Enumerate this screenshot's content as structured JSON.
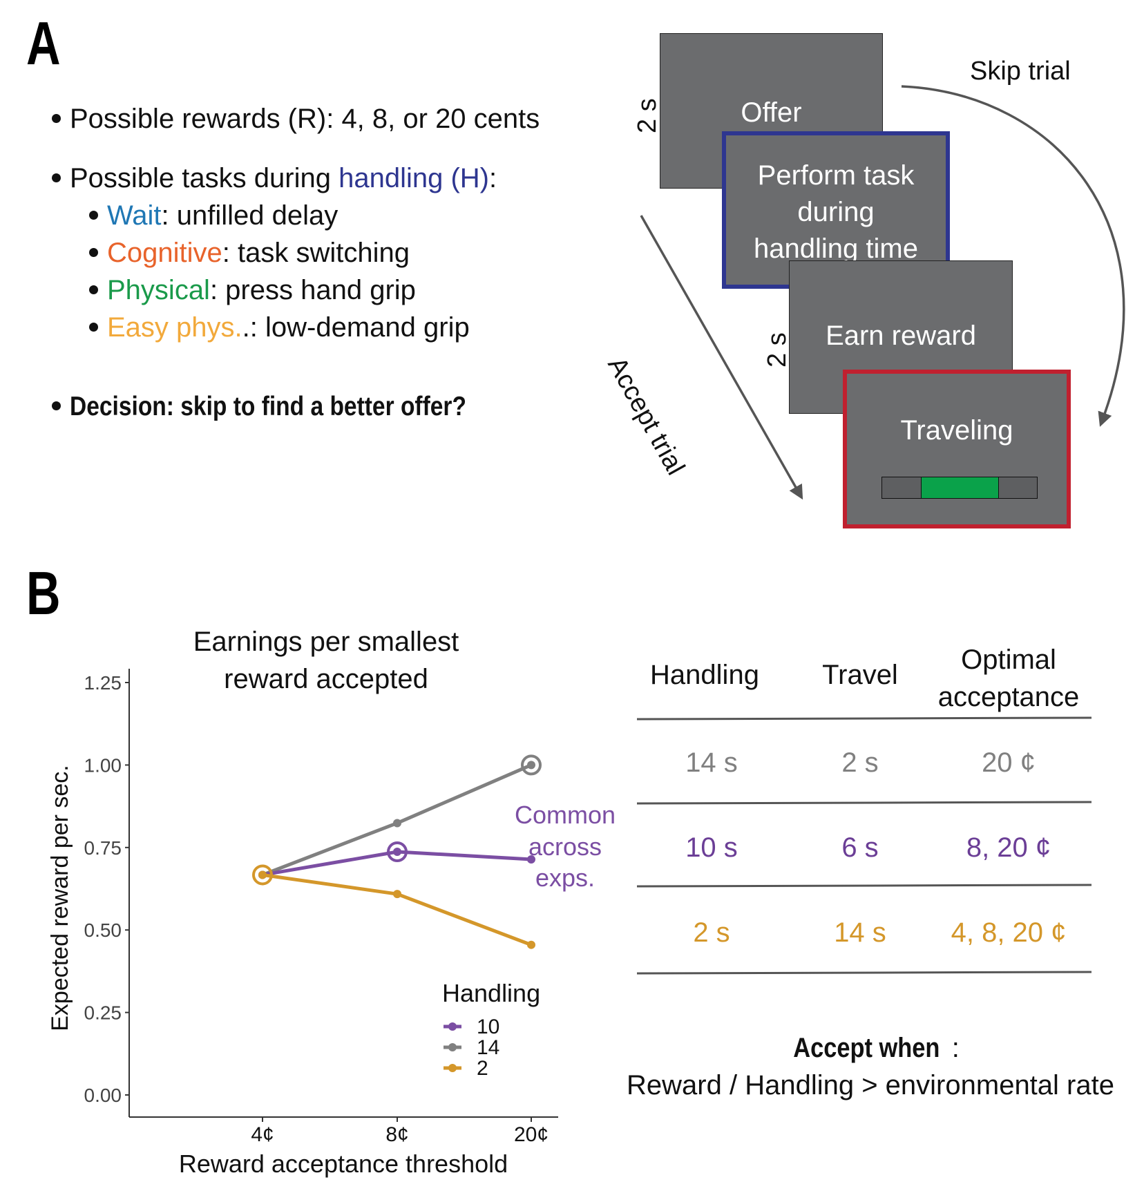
{
  "panels": {
    "a": "A",
    "b": "B"
  },
  "bullets": {
    "rewards": "Possible rewards (R): 4, 8, or 20 cents",
    "tasks_prefix": "Possible tasks during ",
    "tasks_highlight": "handling (H)",
    "tasks_suffix": ":",
    "sub": [
      {
        "name": "Wait",
        "desc": ": unfilled delay"
      },
      {
        "name": "Cognitive",
        "desc": ": task switching"
      },
      {
        "name": "Physical",
        "desc": ": press hand grip"
      },
      {
        "name": "Easy phys.",
        "desc": ".: low-demand grip"
      }
    ],
    "decision": "Decision: skip to find a better offer?"
  },
  "flow": {
    "offer": "Offer",
    "perform": [
      "Perform task",
      "during",
      "handling time"
    ],
    "earn": "Earn reward",
    "traveling": "Traveling",
    "skip": "Skip trial",
    "accept": "Accept trial",
    "duration1": "2 s",
    "duration2": "2 s",
    "progress": 0.5
  },
  "chart_data": {
    "type": "line",
    "title": "Earnings per smallest reward accepted",
    "title_lines": [
      "Earnings per smallest",
      "reward accepted"
    ],
    "xlabel": "Reward acceptance threshold",
    "ylabel": "Expected reward per sec.",
    "categories": [
      "4¢",
      "8¢",
      "20¢"
    ],
    "ylim": [
      0,
      1.25
    ],
    "yticks": [
      "0.00",
      "0.25",
      "0.50",
      "0.75",
      "1.00",
      "1.25"
    ],
    "legend_title": "Handling",
    "legend_placement": "bottom-right",
    "annotation": [
      "Common",
      "across",
      "exps."
    ],
    "series": [
      {
        "name": "10",
        "values": [
          0.667,
          0.737,
          0.714
        ],
        "color": "#7b4ea3",
        "optimal_index": 1
      },
      {
        "name": "14",
        "values": [
          0.667,
          0.824,
          1.0
        ],
        "color": "#808080",
        "optimal_index": 2
      },
      {
        "name": "2",
        "values": [
          0.667,
          0.609,
          0.455
        ],
        "color": "#d4972a",
        "optimal_index": 0
      }
    ]
  },
  "table": {
    "headers": {
      "handling": "Handling",
      "travel": "Travel",
      "optimal": [
        "Optimal",
        "acceptance"
      ]
    },
    "rows": [
      {
        "handling": "14 s",
        "travel": "2 s",
        "optimal": "20 ¢",
        "color": "#808080"
      },
      {
        "handling": "10 s",
        "travel": "6 s",
        "optimal": "8, 20 ¢",
        "color": "#6b3e96"
      },
      {
        "handling": "2 s",
        "travel": "14 s",
        "optimal": "4, 8, 20 ¢",
        "color": "#d4972a"
      }
    ]
  },
  "rule": {
    "bold": "Accept when",
    "colon": ":",
    "text": "Reward / Handling > environmental rate"
  }
}
